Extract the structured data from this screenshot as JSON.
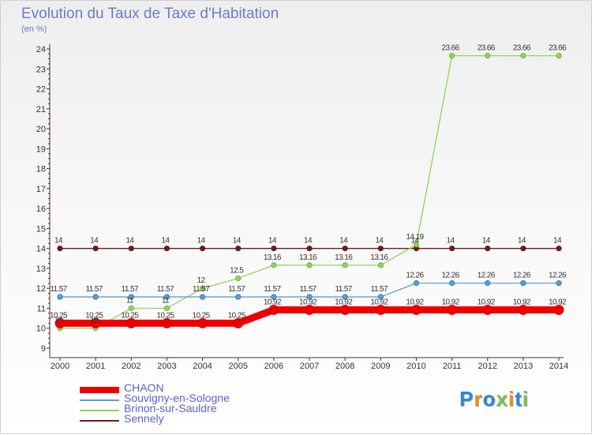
{
  "chart_data": {
    "type": "line",
    "title": "Evolution du Taux de Taxe d'Habitation",
    "ylabel": "(en %)",
    "xlabel": "",
    "x": [
      "2000",
      "2001",
      "2002",
      "2003",
      "2004",
      "2005",
      "2006",
      "2007",
      "2008",
      "2009",
      "2010",
      "2011",
      "2012",
      "2013",
      "2014"
    ],
    "ylim": [
      9,
      24
    ],
    "yticks": [
      "9",
      "10",
      "11",
      "12",
      "13",
      "14",
      "15",
      "16",
      "17",
      "18",
      "19",
      "20",
      "21",
      "22",
      "23",
      "24"
    ],
    "grid": false,
    "legend": "bottom-left",
    "series": [
      {
        "name": "Sennely",
        "color": "#6b1b1b",
        "values": [
          14,
          14,
          14,
          14,
          14,
          14,
          14,
          14,
          14,
          14,
          14,
          14,
          14,
          14,
          14
        ],
        "labels": [
          "14",
          "14",
          "14",
          "14",
          "14",
          "14",
          "14",
          "14",
          "14",
          "14",
          "14",
          "14",
          "14",
          "14",
          "14"
        ]
      },
      {
        "name": "Brinon-sur-Sauldre",
        "color": "#92d35a",
        "values": [
          10,
          10,
          11,
          11,
          12,
          12.5,
          13.16,
          13.16,
          13.16,
          13.16,
          14.19,
          23.66,
          23.66,
          23.66,
          23.66
        ],
        "labels": [
          "10",
          "10",
          "11",
          "11",
          "12",
          "12.5",
          "13.16",
          "13.16",
          "13.16",
          "13.16",
          "14.19",
          "23.66",
          "23.66",
          "23.66",
          "23.66"
        ]
      },
      {
        "name": "Souvigny-en-Sologne",
        "color": "#5b9fd3",
        "values": [
          11.57,
          11.57,
          11.57,
          11.57,
          11.57,
          11.57,
          11.57,
          11.57,
          11.57,
          11.57,
          12.26,
          12.26,
          12.26,
          12.26,
          12.26
        ],
        "labels": [
          "11.57",
          "11.57",
          "11.57",
          "11.57",
          "11.57",
          "11.57",
          "11.57",
          "11.57",
          "11.57",
          "11.57",
          "12.26",
          "12.26",
          "12.26",
          "12.26",
          "12.26"
        ]
      },
      {
        "name": "CHAON",
        "color": "#ee0000",
        "values": [
          10.25,
          10.25,
          10.25,
          10.25,
          10.25,
          10.25,
          10.92,
          10.92,
          10.92,
          10.92,
          10.92,
          10.92,
          10.92,
          10.92,
          10.92
        ],
        "labels": [
          "10.25",
          "10.25",
          "10.25",
          "10.25",
          "10.25",
          "10.25",
          "10.92",
          "10.92",
          "10.92",
          "10.92",
          "10.92",
          "10.92",
          "10.92",
          "10.92",
          "10.92"
        ]
      }
    ]
  },
  "legend": {
    "items": [
      {
        "label": "CHAON",
        "color": "#ee0000"
      },
      {
        "label": "Souvigny-en-Sologne",
        "color": "#5b9fd3"
      },
      {
        "label": "Brinon-sur-Sauldre",
        "color": "#92d35a"
      },
      {
        "label": "Sennely",
        "color": "#6b1b1b"
      }
    ]
  },
  "logo": {
    "letters": [
      {
        "char": "P",
        "color": "#2e86de"
      },
      {
        "char": "r",
        "color": "#f08c1a"
      },
      {
        "char": "o",
        "color": "#2e86de"
      },
      {
        "char": "x",
        "color": "#7cc242"
      },
      {
        "char": "i",
        "color": "#f08c1a"
      },
      {
        "char": "t",
        "color": "#2e86de"
      },
      {
        "char": "i",
        "color": "#7cc242"
      }
    ]
  }
}
